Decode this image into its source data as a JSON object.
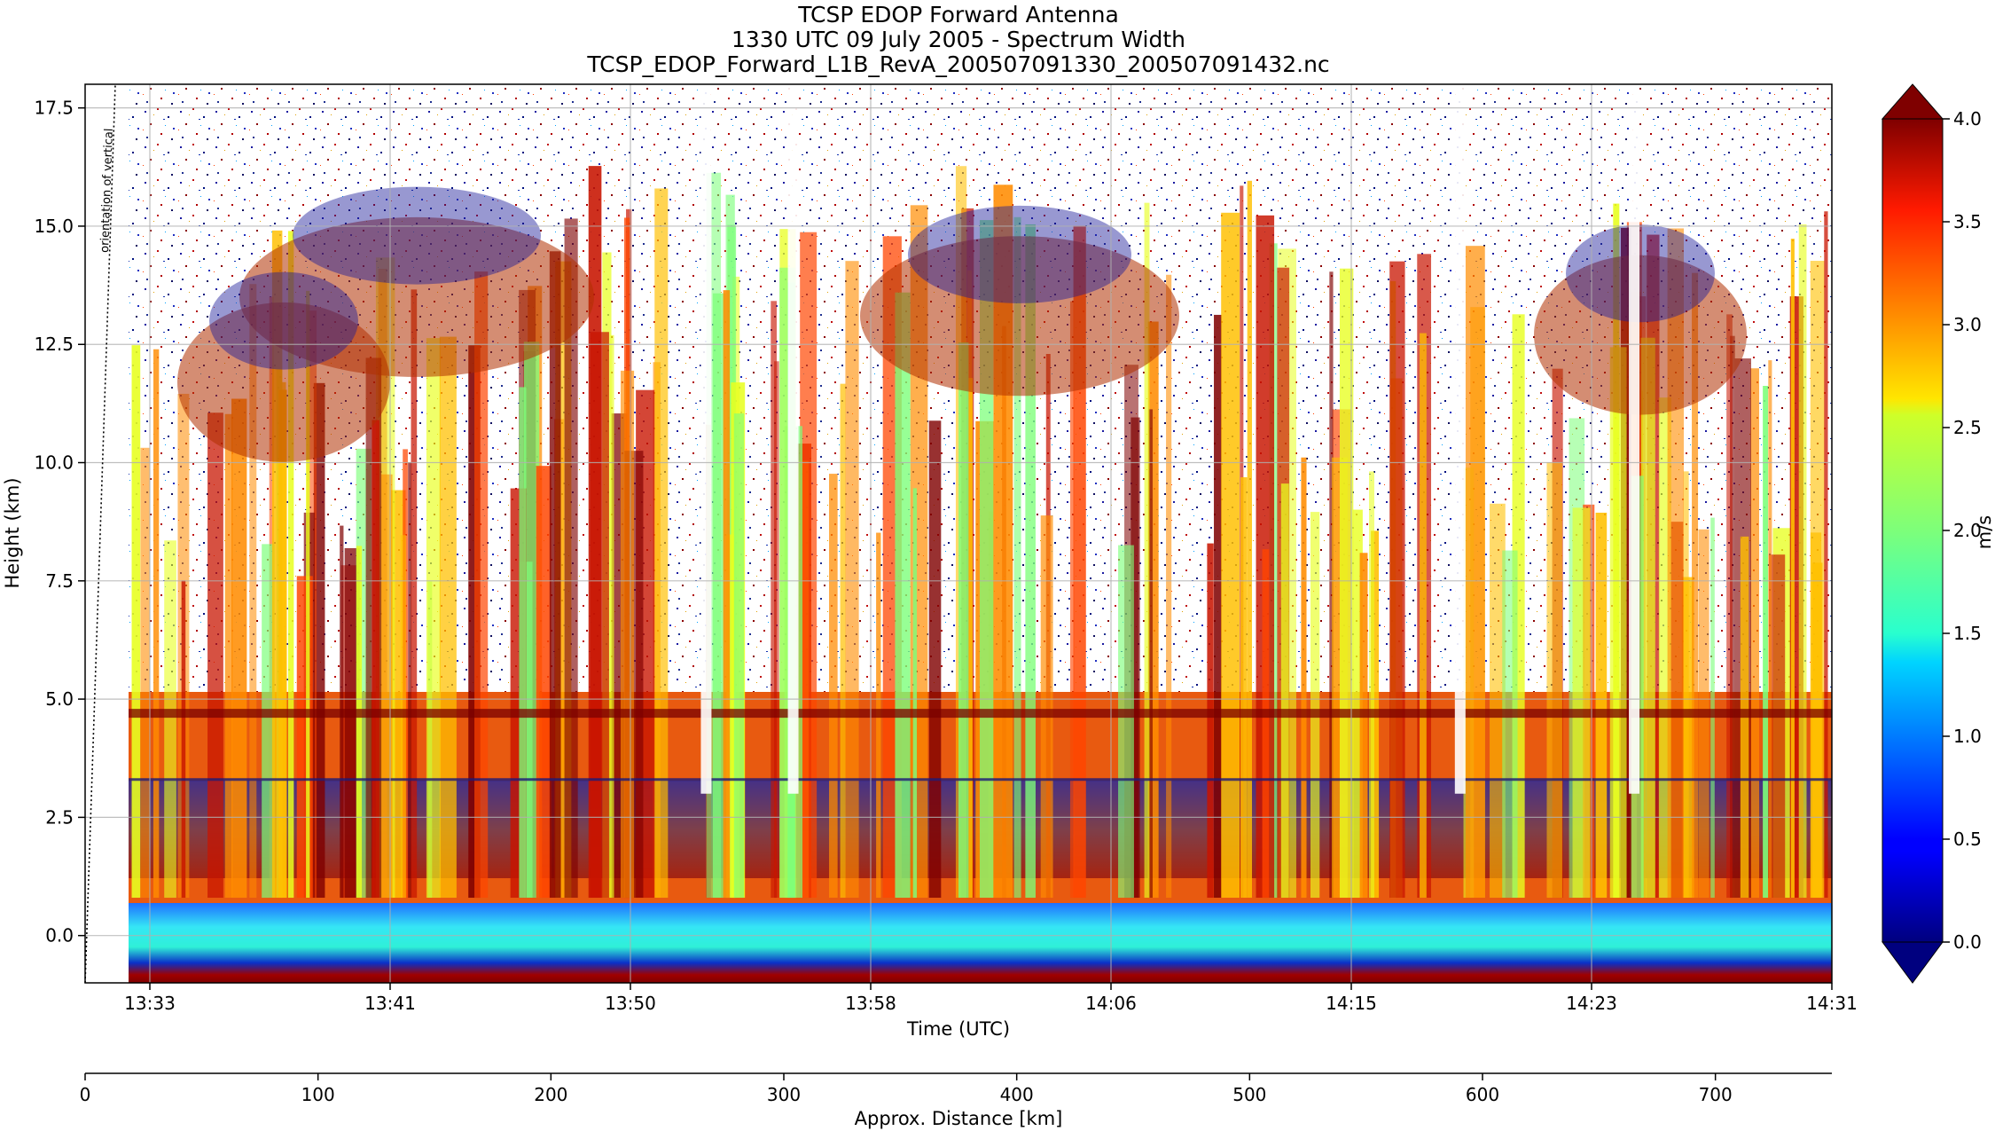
{
  "chart_data": {
    "type": "heatmap",
    "title_lines": [
      "TCSP EDOP Forward Antenna",
      "1330 UTC 09 July 2005 - Spectrum Width",
      "TCSP_EDOP_Forward_L1B_RevA_200507091330_200507091432.nc"
    ],
    "xlabel": "Time (UTC)",
    "ylabel": "Height (km)",
    "x2label": "Approx. Distance [km]",
    "x_ticks": [
      "13:33",
      "13:41",
      "13:50",
      "13:58",
      "14:06",
      "14:15",
      "14:23",
      "14:31"
    ],
    "x2_ticks": [
      0,
      100,
      200,
      300,
      400,
      500,
      600,
      700
    ],
    "x2_range": [
      0,
      750
    ],
    "y_ticks": [
      "0.0",
      "2.5",
      "5.0",
      "7.5",
      "10.0",
      "12.5",
      "15.0",
      "17.5"
    ],
    "ylim": [
      -1,
      18
    ],
    "colorbar": {
      "label": "m/s",
      "range": [
        0.0,
        4.0
      ],
      "ticks": [
        "0.0",
        "0.5",
        "1.0",
        "1.5",
        "2.0",
        "2.5",
        "3.0",
        "3.5",
        "4.0"
      ],
      "colormap": "jet",
      "extend": "both"
    },
    "annotation": "orientation of vertical",
    "grid": true,
    "features": {
      "surface_return_height_km": [
        -0.8,
        0.7
      ],
      "bright_band_height_km": 4.7,
      "bright_band_secondary_km": 3.3,
      "storm_tops_km": [
        15.0,
        16.3,
        16.0,
        15.5
      ],
      "data_gaps_time": [
        "13:52",
        "13:55",
        "14:18",
        "14:24"
      ]
    },
    "colors": {
      "low": "#00007f",
      "mid": "#7fff7f",
      "high": "#7f0000",
      "noise_background": "#ffffff"
    }
  }
}
